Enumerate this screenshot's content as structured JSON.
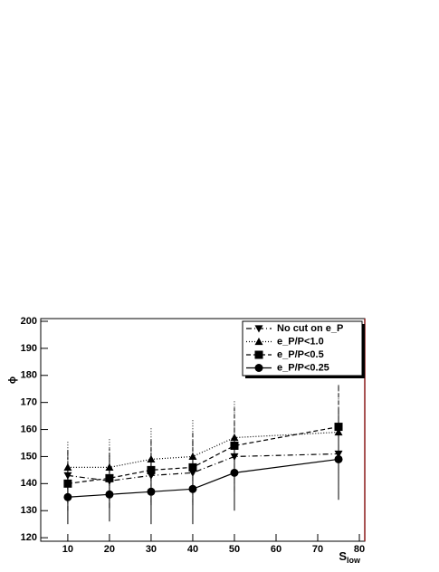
{
  "chart_data": {
    "type": "line",
    "x": [
      10,
      20,
      30,
      40,
      50,
      75
    ],
    "xlabel": "S",
    "xlabel_sub": "low",
    "ylabel": "ϕ",
    "xlim": [
      3.5,
      81.3
    ],
    "ylim": [
      118.7,
      201
    ],
    "xticks": [
      10,
      20,
      30,
      40,
      50,
      60,
      70,
      80
    ],
    "yticks": [
      120,
      130,
      140,
      150,
      160,
      170,
      180,
      190,
      200
    ],
    "legend": "top-right",
    "series": [
      {
        "name": "No cut on e_P",
        "color": "#000000",
        "marker": "triangle-down",
        "dash": "6 3 1 3",
        "values": [
          143,
          141,
          143,
          144,
          150,
          151
        ],
        "errors": [
          10,
          10,
          11,
          12,
          13,
          16
        ]
      },
      {
        "name": "e_P/P<1.0",
        "color": "#000000",
        "marker": "triangle-up",
        "dash": "1 2",
        "values": [
          146,
          146,
          149,
          150,
          157,
          159
        ],
        "errors": [
          10,
          11,
          12,
          14,
          14,
          18
        ]
      },
      {
        "name": "e_P/P<0.5",
        "color": "#000000",
        "marker": "square",
        "dash": "5 3",
        "values": [
          140,
          142,
          145,
          146,
          154,
          161
        ],
        "errors": [
          10,
          11,
          12,
          13,
          14,
          16
        ]
      },
      {
        "name": "e_P/P<0.25",
        "color": "#000000",
        "marker": "circle",
        "dash": "",
        "values": [
          135,
          136,
          137,
          138,
          144,
          149
        ],
        "errors": [
          10,
          10,
          12,
          13,
          14,
          15
        ]
      }
    ]
  }
}
